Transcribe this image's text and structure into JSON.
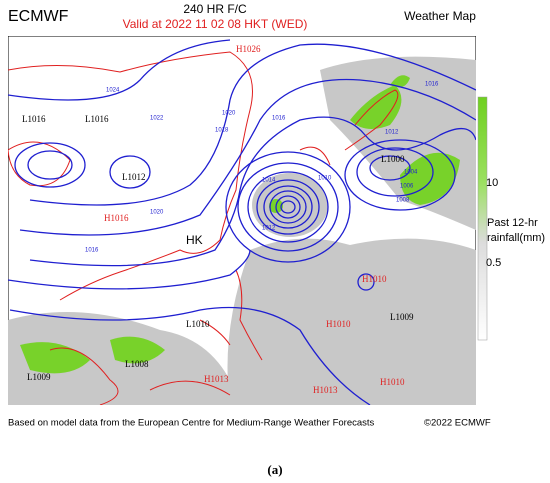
{
  "header": {
    "title": "ECMWF",
    "forecast": "240 HR F/C",
    "valid": "Valid at 2022 11 02  08 HKT (WED)",
    "product": "Weather Map"
  },
  "map": {
    "pressure_labels": [
      "H1026",
      "L1016",
      "L1016",
      "L1012",
      "H1016",
      "L1000",
      "L1010",
      "L1008",
      "L1009",
      "L1009",
      "H1010",
      "H1010",
      "H1010",
      "H1013",
      "H1013"
    ],
    "place_labels": [
      "HK"
    ],
    "isobar_labels": [
      "1024",
      "1022",
      "1020",
      "1018",
      "1016",
      "1014",
      "1012",
      "1010",
      "1008",
      "1006",
      "1004",
      "1016",
      "1012",
      "1020",
      "1016"
    ]
  },
  "colorbar": {
    "ticks": [
      "10",
      "0.5"
    ],
    "label": "Past 12-hr rainfall(mm)"
  },
  "footer": {
    "source": "Based on model data from the European Centre for Medium-Range Weather Forecasts",
    "copyright": "©2022 ECMWF"
  },
  "caption": "(a)"
}
